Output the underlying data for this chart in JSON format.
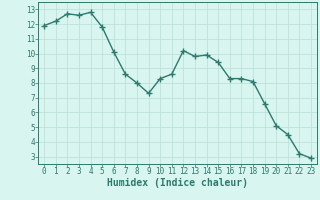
{
  "x": [
    0,
    1,
    2,
    3,
    4,
    5,
    6,
    7,
    8,
    9,
    10,
    11,
    12,
    13,
    14,
    15,
    16,
    17,
    18,
    19,
    20,
    21,
    22,
    23
  ],
  "y": [
    11.9,
    12.2,
    12.7,
    12.6,
    12.8,
    11.8,
    10.1,
    8.6,
    8.0,
    7.3,
    8.3,
    8.6,
    10.2,
    9.8,
    9.9,
    9.4,
    8.3,
    8.3,
    8.1,
    6.6,
    5.1,
    4.5,
    3.2,
    2.9
  ],
  "line_color": "#2d7a6e",
  "marker": "+",
  "marker_size": 4,
  "line_width": 1.0,
  "xlabel": "Humidex (Indice chaleur)",
  "xlabel_fontsize": 7,
  "ylabel_ticks": [
    3,
    4,
    5,
    6,
    7,
    8,
    9,
    10,
    11,
    12,
    13
  ],
  "xtick_labels": [
    "0",
    "1",
    "2",
    "3",
    "4",
    "5",
    "6",
    "7",
    "8",
    "9",
    "10",
    "11",
    "12",
    "13",
    "14",
    "15",
    "16",
    "17",
    "18",
    "19",
    "20",
    "21",
    "22",
    "23"
  ],
  "ylim": [
    2.5,
    13.5
  ],
  "xlim": [
    -0.5,
    23.5
  ],
  "bg_color": "#d8f5f0",
  "grid_color": "#b8ddd8",
  "tick_color": "#2d7a6e",
  "tick_fontsize": 5.5
}
